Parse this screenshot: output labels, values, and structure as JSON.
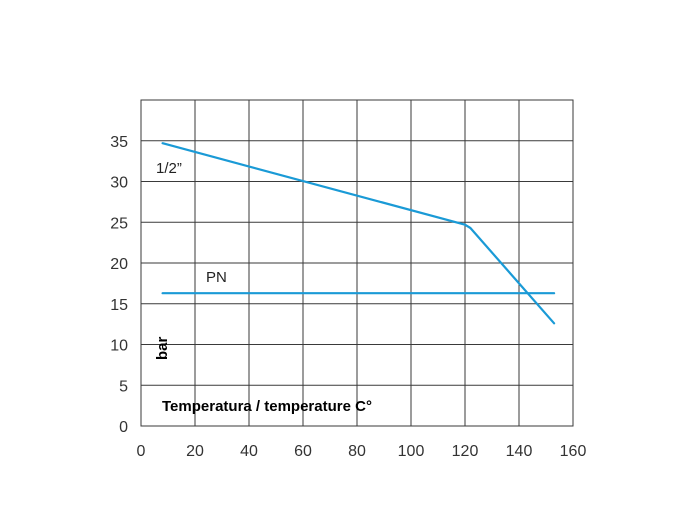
{
  "chart_data": {
    "type": "line",
    "title": "",
    "xlabel": "Temperatura / temperature C°",
    "ylabel": "bar",
    "xlim": [
      0,
      160
    ],
    "ylim": [
      0,
      40
    ],
    "x_ticks": [
      0,
      20,
      40,
      60,
      80,
      100,
      120,
      140,
      160
    ],
    "y_ticks": [
      0,
      5,
      10,
      15,
      20,
      25,
      30,
      35
    ],
    "grid": true,
    "series": [
      {
        "name": "1/2”",
        "color": "#1a9ad6",
        "points": [
          [
            8,
            34.7
          ],
          [
            120,
            24.7
          ],
          [
            122,
            24.3
          ],
          [
            153,
            12.6
          ]
        ]
      },
      {
        "name": "PN",
        "color": "#1a9ad6",
        "points": [
          [
            8,
            16.3
          ],
          [
            153,
            16.3
          ]
        ]
      }
    ]
  }
}
